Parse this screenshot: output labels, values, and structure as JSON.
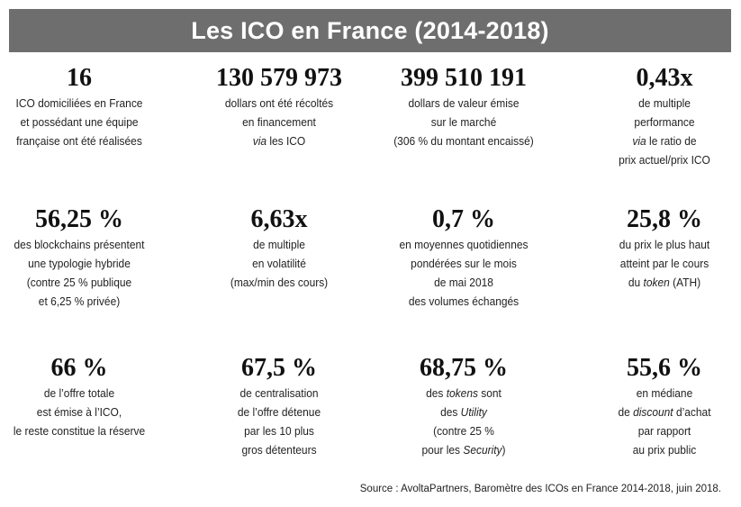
{
  "title": "Les ICO en France (2014-2018)",
  "colors": {
    "title_bar": "#6e6e6e",
    "title_text": "#ffffff",
    "text": "#1a1a1a"
  },
  "stats": [
    {
      "value": "16",
      "lines": [
        [
          [
            "ICO domiciliées en France",
            false
          ]
        ],
        [
          [
            "et possédant une équipe",
            false
          ]
        ],
        [
          [
            "française ont été réalisées",
            false
          ]
        ]
      ]
    },
    {
      "value": "130 579 973",
      "lines": [
        [
          [
            "dollars ont été récoltés",
            false
          ]
        ],
        [
          [
            "en financement",
            false
          ]
        ],
        [
          [
            "via",
            true
          ],
          [
            " les ICO",
            false
          ]
        ]
      ]
    },
    {
      "value": "399 510 191",
      "lines": [
        [
          [
            "dollars de valeur émise",
            false
          ]
        ],
        [
          [
            "sur le marché",
            false
          ]
        ],
        [
          [
            "(306 % du montant encaissé)",
            false
          ]
        ]
      ]
    },
    {
      "value": "0,43x",
      "lines": [
        [
          [
            "de multiple",
            false
          ]
        ],
        [
          [
            "performance",
            false
          ]
        ],
        [
          [
            "via",
            true
          ],
          [
            " le ratio de",
            false
          ]
        ],
        [
          [
            "prix actuel/prix ICO",
            false
          ]
        ]
      ]
    },
    {
      "value": "56,25 %",
      "lines": [
        [
          [
            "des blockchains présentent",
            false
          ]
        ],
        [
          [
            "une typologie hybride",
            false
          ]
        ],
        [
          [
            "(contre 25 % publique",
            false
          ]
        ],
        [
          [
            "et 6,25 % privée)",
            false
          ]
        ]
      ]
    },
    {
      "value": "6,63x",
      "lines": [
        [
          [
            "de multiple",
            false
          ]
        ],
        [
          [
            "en volatilité",
            false
          ]
        ],
        [
          [
            "(max/min des cours)",
            false
          ]
        ]
      ]
    },
    {
      "value": "0,7 %",
      "lines": [
        [
          [
            "en moyennes quotidiennes",
            false
          ]
        ],
        [
          [
            "pondérées sur le mois",
            false
          ]
        ],
        [
          [
            "de mai 2018",
            false
          ]
        ],
        [
          [
            "des volumes échangés",
            false
          ]
        ]
      ]
    },
    {
      "value": "25,8 %",
      "lines": [
        [
          [
            "du prix le plus haut",
            false
          ]
        ],
        [
          [
            "atteint par le cours",
            false
          ]
        ],
        [
          [
            "du ",
            false
          ],
          [
            "token",
            true
          ],
          [
            " (ATH)",
            false
          ]
        ]
      ]
    },
    {
      "value": "66 %",
      "lines": [
        [
          [
            "de l’offre totale",
            false
          ]
        ],
        [
          [
            "est émise à l’ICO,",
            false
          ]
        ],
        [
          [
            "le reste constitue la réserve",
            false
          ]
        ]
      ]
    },
    {
      "value": "67,5 %",
      "lines": [
        [
          [
            "de centralisation",
            false
          ]
        ],
        [
          [
            "de l’offre détenue",
            false
          ]
        ],
        [
          [
            "par les 10 plus",
            false
          ]
        ],
        [
          [
            "gros détenteurs",
            false
          ]
        ]
      ]
    },
    {
      "value": "68,75 %",
      "lines": [
        [
          [
            "des ",
            false
          ],
          [
            "tokens",
            true
          ],
          [
            " sont",
            false
          ]
        ],
        [
          [
            "des ",
            false
          ],
          [
            "Utility",
            true
          ]
        ],
        [
          [
            "(contre 25 %",
            false
          ]
        ],
        [
          [
            "pour les ",
            false
          ],
          [
            "Security",
            true
          ],
          [
            ")",
            false
          ]
        ]
      ]
    },
    {
      "value": "55,6 %",
      "lines": [
        [
          [
            "en médiane",
            false
          ]
        ],
        [
          [
            "de ",
            false
          ],
          [
            "discount",
            true
          ],
          [
            " d’achat",
            false
          ]
        ],
        [
          [
            "par rapport",
            false
          ]
        ],
        [
          [
            "au prix public",
            false
          ]
        ]
      ]
    }
  ],
  "source": "Source : AvoltaPartners, Baromètre des ICOs en France 2014-2018, juin 2018."
}
